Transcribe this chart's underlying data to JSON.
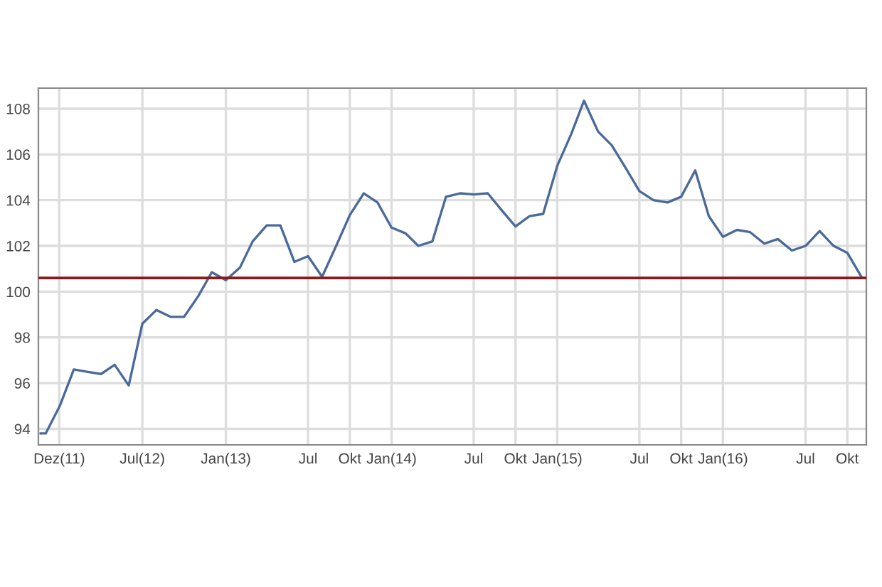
{
  "chart_data": {
    "type": "line",
    "x": [
      "2011-11-20",
      "2011-12-01",
      "2012-01-01",
      "2012-02-01",
      "2012-03-01",
      "2012-04-01",
      "2012-05-01",
      "2012-06-01",
      "2012-07-01",
      "2012-08-01",
      "2012-09-01",
      "2012-10-01",
      "2012-11-01",
      "2012-12-01",
      "2013-01-01",
      "2013-02-01",
      "2013-03-01",
      "2013-04-01",
      "2013-05-01",
      "2013-06-01",
      "2013-07-01",
      "2013-08-01",
      "2013-09-01",
      "2013-10-01",
      "2013-11-01",
      "2013-12-01",
      "2014-01-01",
      "2014-02-01",
      "2014-03-01",
      "2014-04-01",
      "2014-05-01",
      "2014-06-01",
      "2014-07-01",
      "2014-08-01",
      "2014-09-01",
      "2014-10-01",
      "2014-11-01",
      "2014-12-01",
      "2015-01-01",
      "2015-02-01",
      "2015-03-01",
      "2015-04-01",
      "2015-05-01",
      "2015-06-01",
      "2015-07-01",
      "2015-08-01",
      "2015-09-01",
      "2015-10-01",
      "2015-11-01",
      "2015-12-01",
      "2016-01-01",
      "2016-02-01",
      "2016-03-01",
      "2016-04-01",
      "2016-05-01",
      "2016-06-01",
      "2016-07-01",
      "2016-08-01",
      "2016-09-01",
      "2016-10-01",
      "2016-11-01"
    ],
    "series": [
      {
        "color": "#4a6a9a",
        "values": [
          93.8,
          93.8,
          95.0,
          96.6,
          96.5,
          96.4,
          96.8,
          95.9,
          98.6,
          99.2,
          98.9,
          98.9,
          99.8,
          100.85,
          100.5,
          101.05,
          102.2,
          102.9,
          102.9,
          101.3,
          101.55,
          100.65,
          102.0,
          103.35,
          104.3,
          103.9,
          102.8,
          102.55,
          102.0,
          102.2,
          104.15,
          104.3,
          104.25,
          104.3,
          103.55,
          102.85,
          103.3,
          103.4,
          105.5,
          106.9,
          108.35,
          107.0,
          106.4,
          105.4,
          104.4,
          104.0,
          103.9,
          104.15,
          105.3,
          103.3,
          102.4,
          102.7,
          102.6,
          102.1,
          102.3,
          101.8,
          102.0,
          102.65,
          102.0,
          101.7,
          100.65
        ]
      }
    ],
    "xlim": [
      "2011-11-15",
      "2016-11-12"
    ],
    "xticks": [
      {
        "value": "2011-12-31",
        "label": "Dez(11)"
      },
      {
        "value": "2012-07-01",
        "label": "Jul(12)"
      },
      {
        "value": "2013-01-01",
        "label": "Jan(13)"
      },
      {
        "value": "2013-07-01",
        "label": "Jul"
      },
      {
        "value": "2013-10-01",
        "label": "Okt"
      },
      {
        "value": "2014-01-01",
        "label": "Jan(14)"
      },
      {
        "value": "2014-07-01",
        "label": "Jul"
      },
      {
        "value": "2014-10-01",
        "label": "Okt"
      },
      {
        "value": "2015-01-01",
        "label": "Jan(15)"
      },
      {
        "value": "2015-07-01",
        "label": "Jul"
      },
      {
        "value": "2015-10-01",
        "label": "Okt"
      },
      {
        "value": "2016-01-01",
        "label": "Jan(16)"
      },
      {
        "value": "2016-07-01",
        "label": "Jul"
      },
      {
        "value": "2016-10-01",
        "label": "Okt"
      }
    ],
    "ylim": [
      93.3,
      108.9
    ],
    "yticks": [
      94,
      96,
      98,
      100,
      102,
      104,
      106,
      108
    ],
    "ref_lines": [
      {
        "axis": "y",
        "value": 100.6,
        "color": "#8b1a1a"
      }
    ],
    "grid": true,
    "legend": false,
    "marker": "none",
    "line_style": "solid"
  }
}
